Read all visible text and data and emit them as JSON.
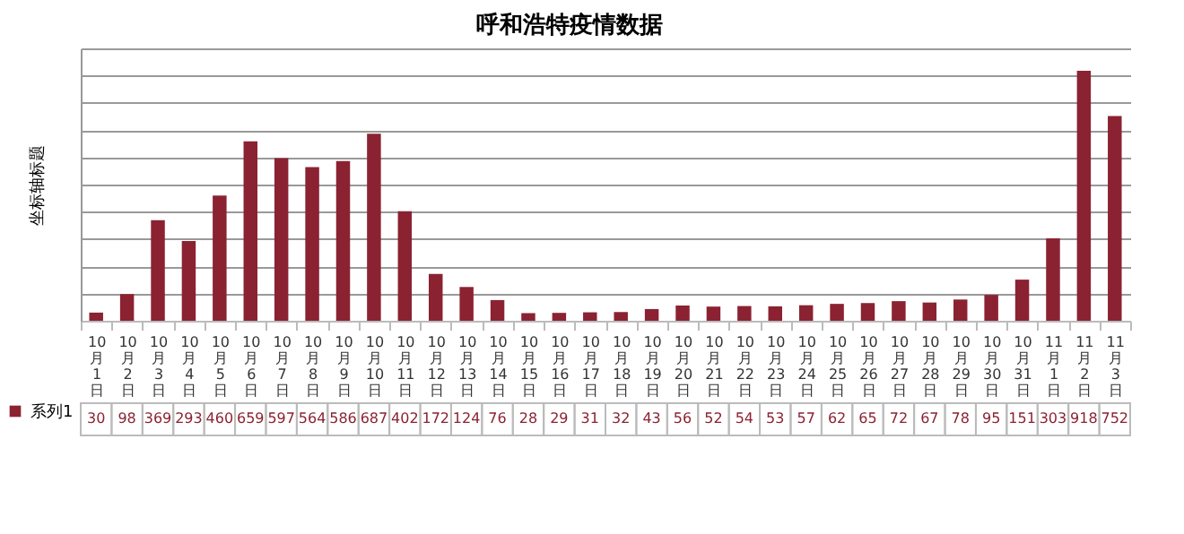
{
  "chart_data": {
    "type": "bar",
    "title": "呼和浩特疫情数据",
    "ylabel": "坐标轴标题",
    "categories": [
      "10月1日",
      "10月2日",
      "10月3日",
      "10月4日",
      "10月5日",
      "10月6日",
      "10月7日",
      "10月8日",
      "10月9日",
      "10月10日",
      "10月11日",
      "10月12日",
      "10月13日",
      "10月14日",
      "10月15日",
      "10月16日",
      "10月17日",
      "10月18日",
      "10月19日",
      "10月20日",
      "10月21日",
      "10月22日",
      "10月23日",
      "10月24日",
      "10月25日",
      "10月26日",
      "10月27日",
      "10月28日",
      "10月29日",
      "10月30日",
      "10月31日",
      "11月1日",
      "11月2日",
      "11月3日"
    ],
    "series": [
      {
        "name": "系列1",
        "color": "#8b2232",
        "values": [
          30,
          98,
          369,
          293,
          460,
          659,
          597,
          564,
          586,
          687,
          402,
          172,
          124,
          76,
          28,
          29,
          31,
          32,
          43,
          56,
          52,
          54,
          53,
          57,
          62,
          65,
          72,
          67,
          78,
          95,
          151,
          303,
          918,
          752
        ]
      }
    ],
    "ylim": [
      0,
      1000
    ],
    "yticks": [
      {
        "value": 0,
        "label": null
      },
      {
        "value": 100,
        "label": null
      },
      {
        "value": 200,
        "label": null
      },
      {
        "value": 300,
        "label": null
      },
      {
        "value": 400,
        "label": null
      },
      {
        "value": 500,
        "label": null
      },
      {
        "value": 600,
        "label": null
      },
      {
        "value": 700,
        "label": null
      },
      {
        "value": 800,
        "label": null
      },
      {
        "value": 900,
        "label": null
      },
      {
        "value": 1000,
        "label": null
      }
    ],
    "tick_labels": "x",
    "grid": "y",
    "data_labels": true,
    "legend": "bottom"
  }
}
